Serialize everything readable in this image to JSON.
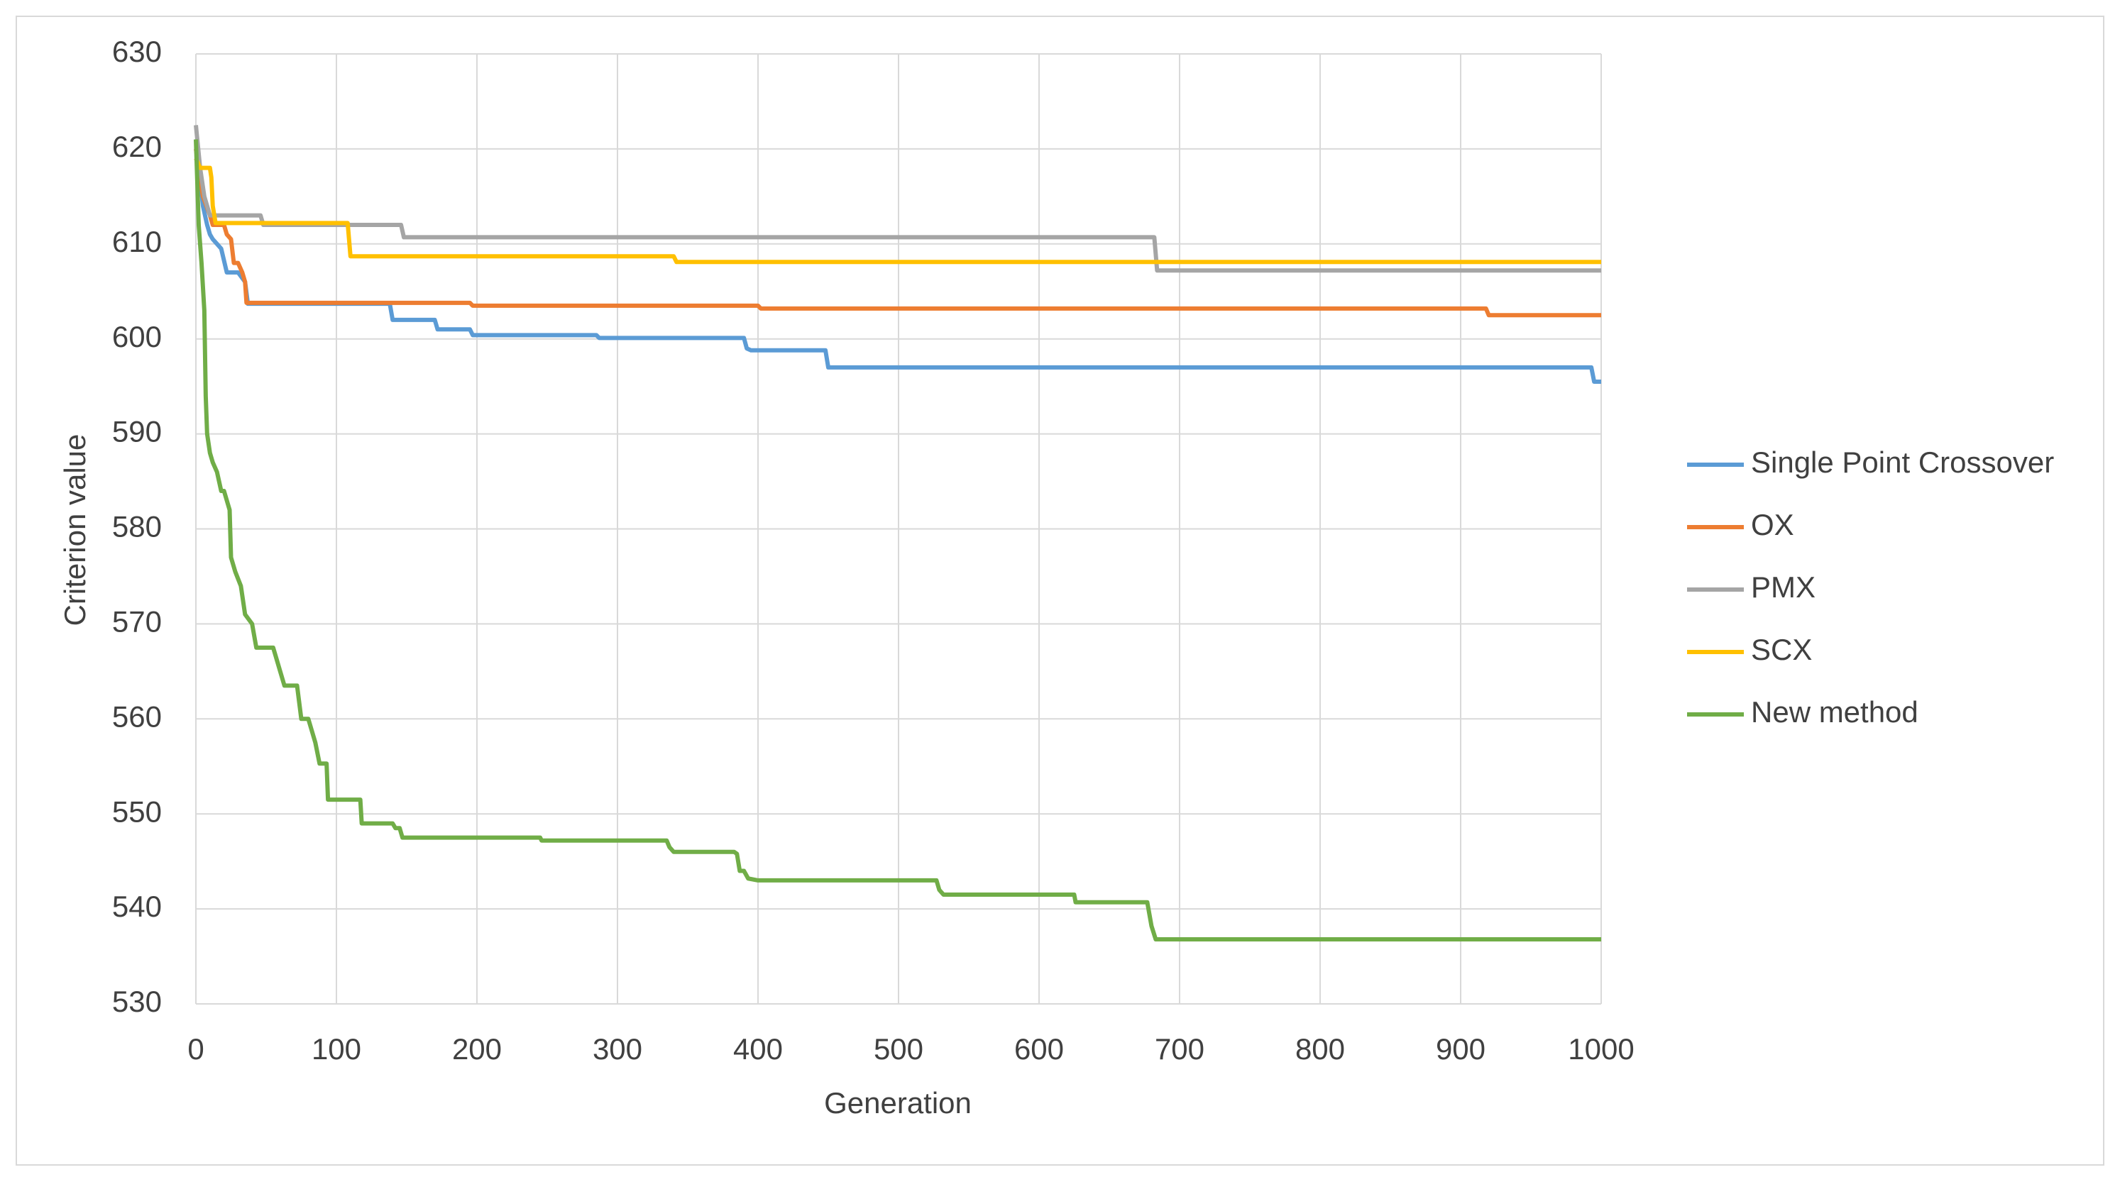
{
  "chart_data": {
    "type": "line",
    "x_label": "Generation",
    "y_label": "Criterion value",
    "xlim": [
      0,
      1000
    ],
    "xticks": [
      0,
      100,
      200,
      300,
      400,
      500,
      600,
      700,
      800,
      900,
      1000
    ],
    "ylim": [
      530,
      630
    ],
    "yticks": [
      530,
      540,
      550,
      560,
      570,
      580,
      590,
      600,
      610,
      620,
      630
    ],
    "grid": true,
    "legend": "right",
    "series": [
      {
        "name": "Single Point Crossover",
        "color": "#5b9bd5",
        "x": [
          0,
          3,
          5,
          8,
          10,
          12,
          15,
          18,
          22,
          25,
          30,
          35,
          37,
          138,
          140,
          170,
          172,
          195,
          197,
          285,
          287,
          390,
          392,
          395,
          448,
          450,
          993,
          995,
          1000
        ],
        "values": [
          621,
          617,
          614,
          612,
          611,
          610.5,
          610,
          609.5,
          607,
          607,
          607,
          606,
          603.7,
          603.7,
          602,
          602,
          601,
          601,
          600.4,
          600.4,
          600.1,
          600.1,
          599,
          598.8,
          598.8,
          597,
          597,
          595.5,
          595.5
        ]
      },
      {
        "name": "OX",
        "color": "#ed7d31",
        "x": [
          0,
          5,
          10,
          12,
          20,
          22,
          25,
          27,
          30,
          33,
          35,
          36,
          195,
          197,
          400,
          402,
          918,
          920,
          1000
        ],
        "values": [
          620,
          615,
          613,
          612,
          612,
          611,
          610.5,
          608,
          608,
          607,
          606,
          603.8,
          603.8,
          603.5,
          603.5,
          603.2,
          603.2,
          602.5,
          602.5
        ]
      },
      {
        "name": "PMX",
        "color": "#a5a5a5",
        "x": [
          0,
          3,
          6,
          10,
          46,
          48,
          146,
          148,
          682,
          684,
          1000
        ],
        "values": [
          622.5,
          618,
          615,
          613,
          613,
          612,
          612,
          610.7,
          610.7,
          607.2,
          607.2
        ]
      },
      {
        "name": "SCX",
        "color": "#ffc000",
        "x": [
          0,
          3,
          10,
          11,
          12,
          14,
          108,
          110,
          340,
          342,
          1000
        ],
        "values": [
          619,
          618,
          618,
          617,
          614,
          612.2,
          612.2,
          608.7,
          608.7,
          608.1,
          608.1
        ]
      },
      {
        "name": "New method",
        "color": "#70ad47",
        "x": [
          0,
          2,
          4,
          6,
          7,
          8,
          10,
          12,
          15,
          18,
          20,
          24,
          25,
          28,
          32,
          35,
          40,
          43,
          45,
          55,
          57,
          60,
          63,
          72,
          75,
          80,
          82,
          85,
          88,
          93,
          94,
          117,
          118,
          140,
          142,
          145,
          147,
          245,
          246,
          335,
          337,
          340,
          383,
          385,
          387,
          390,
          393,
          400,
          527,
          529,
          532,
          625,
          626,
          677,
          680,
          683,
          1000
        ],
        "values": [
          621,
          612,
          608,
          603,
          594,
          590,
          588,
          587,
          586,
          584,
          584,
          582,
          577,
          575.5,
          574,
          571,
          570,
          567.5,
          567.5,
          567.5,
          566.5,
          565,
          563.5,
          563.5,
          560,
          560,
          559,
          557.5,
          555.3,
          555.3,
          551.5,
          551.5,
          549,
          549,
          548.5,
          548.5,
          547.5,
          547.5,
          547.2,
          547.2,
          546.5,
          546,
          546,
          545.8,
          544,
          544,
          543.2,
          543,
          543,
          542,
          541.5,
          541.5,
          540.7,
          540.7,
          538.2,
          536.8,
          536.8
        ]
      }
    ]
  }
}
